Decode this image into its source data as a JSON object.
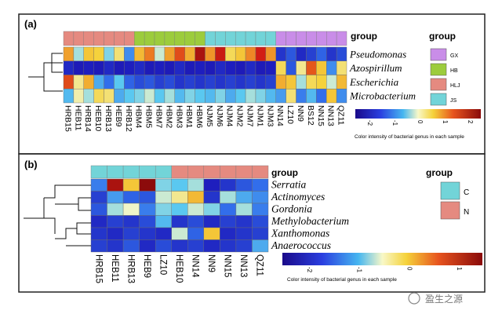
{
  "watermark": "盈生之源",
  "chart_data": [
    {
      "type": "heatmap",
      "panel_label": "(a)",
      "group_bar_title": "group",
      "legend_title": "group",
      "rows": [
        "Pseudomonas",
        "Azospirillum",
        "Escherichia",
        "Microbacterium"
      ],
      "columns": [
        "HRB15",
        "HEB11",
        "HRB14",
        "HEB10",
        "HRB13",
        "HEB9",
        "HRB12",
        "HBM4",
        "HBM5",
        "HBM7",
        "HBM2",
        "HBM3",
        "HBM1",
        "HBM6",
        "NJM5",
        "NJM6",
        "NJM4",
        "NJM2",
        "NJM7",
        "NJM1",
        "NJM3",
        "NN14",
        "LZ10",
        "NN9",
        "BS12",
        "NN15",
        "NN13",
        "QZ11"
      ],
      "column_groups": [
        "HLJ",
        "HLJ",
        "HLJ",
        "HLJ",
        "HLJ",
        "HLJ",
        "HLJ",
        "HB",
        "HB",
        "HB",
        "HB",
        "HB",
        "HB",
        "HB",
        "JS",
        "JS",
        "JS",
        "JS",
        "JS",
        "JS",
        "JS",
        "GX",
        "GX",
        "GX",
        "GX",
        "GX",
        "GX",
        "GX"
      ],
      "groups": [
        {
          "name": "GX",
          "color": "#c98de8"
        },
        {
          "name": "HB",
          "color": "#9ccc3c"
        },
        {
          "name": "HLJ",
          "color": "#e58a80"
        },
        {
          "name": "JS",
          "color": "#72d4d8"
        }
      ],
      "values": [
        [
          0.9,
          -0.2,
          0.6,
          0.5,
          -0.3,
          0.3,
          -0.8,
          0.7,
          1.2,
          -0.1,
          0.9,
          1.6,
          0.8,
          2.4,
          1.0,
          2.1,
          0.4,
          0.6,
          1.1,
          2.0,
          1.0,
          -1.5,
          -1.2,
          -1.6,
          -1.4,
          -1.1,
          -1.5,
          -1.3
        ],
        [
          -1.6,
          -1.8,
          -1.7,
          -1.8,
          -1.6,
          -1.8,
          -1.7,
          -1.6,
          -1.8,
          -1.7,
          -1.8,
          -1.6,
          -1.8,
          -1.7,
          -1.8,
          -1.6,
          -1.7,
          -1.8,
          -1.6,
          -1.8,
          -1.7,
          0.4,
          -1.2,
          0.2,
          1.5,
          0.6,
          -0.8,
          0.3
        ],
        [
          1.6,
          0.2,
          0.8,
          -0.6,
          -1.0,
          -0.4,
          -1.1,
          -1.3,
          -1.2,
          -1.4,
          -1.3,
          -1.5,
          -1.4,
          -1.5,
          -1.4,
          -1.5,
          -1.4,
          -1.5,
          -1.4,
          -1.5,
          -1.4,
          0.8,
          0.6,
          -0.2,
          0.4,
          0.5,
          -0.1,
          0.7
        ],
        [
          -0.5,
          0.1,
          -0.2,
          0.4,
          0.3,
          -0.6,
          -0.4,
          -0.3,
          -0.1,
          -0.4,
          -0.2,
          -0.5,
          -0.3,
          -0.4,
          -0.5,
          -0.3,
          -0.6,
          -0.4,
          -0.2,
          -0.3,
          -0.5,
          -0.7,
          0.3,
          -0.9,
          -0.5,
          -1.0,
          0.6,
          -0.8
        ]
      ],
      "colorbar": {
        "ticks": [
          "-2",
          "-1",
          "0",
          "1",
          "2"
        ],
        "caption": "Color intensity of bacterial genus in each sample"
      }
    },
    {
      "type": "heatmap",
      "panel_label": "(b)",
      "group_bar_title": "group",
      "legend_title": "group",
      "rows": [
        "Serratia",
        "Actinomyces",
        "Gordonia",
        "Methylobacterium",
        "Xanthomonas",
        "Anaerococcus"
      ],
      "columns": [
        "HRB15",
        "HEB11",
        "HRB13",
        "HEB9",
        "LZ10",
        "HEB10",
        "NN14",
        "NN9",
        "NN15",
        "NN13",
        "QZ11"
      ],
      "column_groups": [
        "C",
        "C",
        "C",
        "C",
        "C",
        "N",
        "N",
        "N",
        "N",
        "N",
        "N"
      ],
      "groups": [
        {
          "name": "C",
          "color": "#72d4d8"
        },
        {
          "name": "N",
          "color": "#e58a80"
        }
      ],
      "values": [
        [
          -0.9,
          2.4,
          0.6,
          2.7,
          -0.3,
          -0.4,
          -0.2,
          -1.7,
          -1.5,
          -1.2,
          -1.0
        ],
        [
          -1.4,
          -0.7,
          -1.1,
          -1.2,
          -0.1,
          0.2,
          0.7,
          -1.5,
          -0.2,
          -0.6,
          -0.8
        ],
        [
          -1.2,
          -0.2,
          0.0,
          -0.9,
          -0.3,
          -0.4,
          -0.1,
          -0.3,
          -1.0,
          -0.2,
          -0.9
        ],
        [
          -1.6,
          -1.4,
          -1.5,
          -1.3,
          -0.5,
          -1.5,
          -1.3,
          -1.6,
          -1.4,
          -1.5,
          -1.3
        ],
        [
          -1.5,
          -1.6,
          -1.4,
          -1.5,
          -1.6,
          -0.1,
          -1.1,
          0.6,
          -1.6,
          -1.5,
          -1.4
        ],
        [
          -1.4,
          -1.5,
          -1.2,
          -1.6,
          -1.3,
          -1.5,
          -1.4,
          -1.6,
          -1.5,
          -1.4,
          -0.6
        ]
      ],
      "colorbar": {
        "ticks": [
          "-2",
          "-1",
          "0",
          "1"
        ],
        "caption": "Color intensity of bacterial genus in each sample"
      }
    }
  ]
}
